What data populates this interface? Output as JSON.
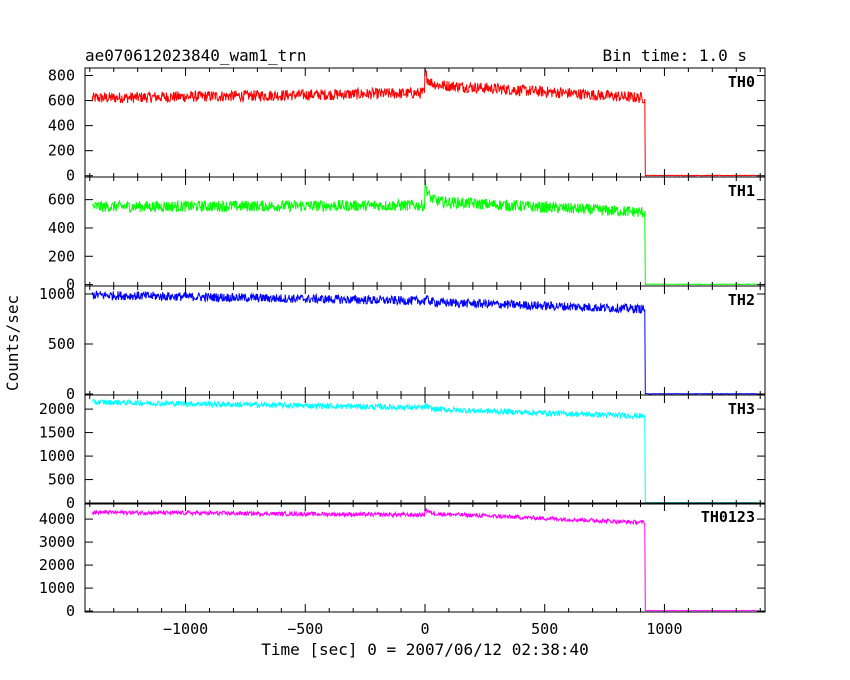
{
  "title": "ae070612023840_wam1_trn",
  "bin_time": "Bin time: 1.0 s",
  "ylabel": "Counts/sec",
  "xlabel": "Time [sec] 0 = 2007/06/12 02:38:40",
  "chart_data": {
    "type": "line",
    "x_range": [
      -1420,
      1420
    ],
    "x_ticks": [
      -1000,
      -500,
      0,
      500,
      1000
    ],
    "x_tick_labels": [
      "−1000",
      "−500",
      "0",
      "500",
      "1000"
    ],
    "shutoff_time": 920,
    "panels": [
      {
        "name": "TH0",
        "color": "#ff0000",
        "ylim": [
          -10,
          860
        ],
        "yticks": [
          0,
          200,
          400,
          600,
          800
        ],
        "yticklabels": [
          "0",
          "200",
          "400",
          "600",
          "800"
        ],
        "level_start": 620,
        "level_mid": 660,
        "level_after_peak": 730,
        "level_end": 620,
        "peak": 830,
        "noise": 45,
        "post_level": 2
      },
      {
        "name": "TH1",
        "color": "#00ff00",
        "ylim": [
          -10,
          760
        ],
        "yticks": [
          0,
          200,
          400,
          600
        ],
        "yticklabels": [
          "0",
          "200",
          "400",
          "600"
        ],
        "level_start": 550,
        "level_mid": 560,
        "level_after_peak": 590,
        "level_end": 510,
        "peak": 720,
        "noise": 40,
        "post_level": 2
      },
      {
        "name": "TH2",
        "color": "#0000ff",
        "ylim": [
          -10,
          1080
        ],
        "yticks": [
          0,
          500,
          1000
        ],
        "yticklabels": [
          "0",
          "500",
          "1000"
        ],
        "level_start": 990,
        "level_mid": 930,
        "level_after_peak": 920,
        "level_end": 850,
        "peak": 960,
        "noise": 45,
        "post_level": 2
      },
      {
        "name": "TH3",
        "color": "#00ffff",
        "ylim": [
          -20,
          2300
        ],
        "yticks": [
          0,
          500,
          1000,
          1500,
          2000
        ],
        "yticklabels": [
          "0",
          "500",
          "1000",
          "1500",
          "2000"
        ],
        "level_start": 2150,
        "level_mid": 2030,
        "level_after_peak": 2000,
        "level_end": 1850,
        "peak": 2100,
        "noise": 60,
        "post_level": 10
      },
      {
        "name": "TH0123",
        "color": "#ff00ff",
        "ylim": [
          -40,
          4700
        ],
        "yticks": [
          0,
          1000,
          2000,
          3000,
          4000
        ],
        "yticklabels": [
          "0",
          "1000",
          "2000",
          "3000",
          "4000"
        ],
        "level_start": 4300,
        "level_mid": 4180,
        "level_after_peak": 4250,
        "level_end": 3850,
        "peak": 4450,
        "noise": 90,
        "post_level": 20
      }
    ]
  }
}
